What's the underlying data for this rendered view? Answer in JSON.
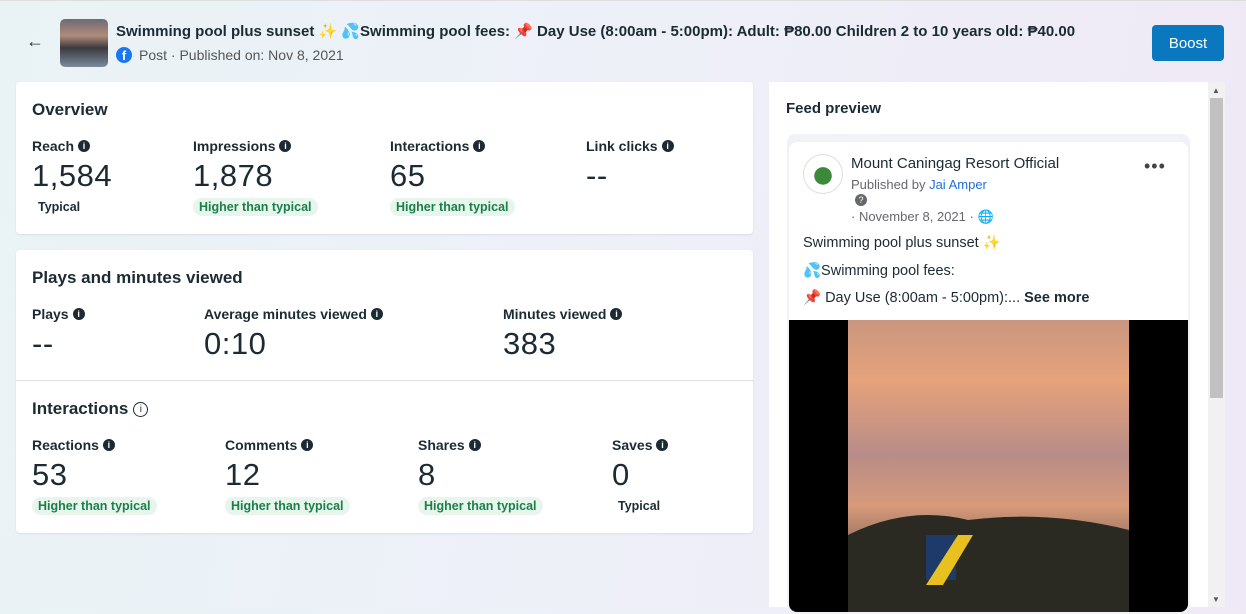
{
  "header": {
    "title": "Swimming pool plus sunset ✨ 💦Swimming pool fees: 📌 Day Use (8:00am - 5:00pm): Adult: ₱80.00 Children 2 to 10 years old: ₱40.00",
    "subtitle": "Post · Published on: Nov 8, 2021",
    "boost_label": "Boost"
  },
  "overview": {
    "title": "Overview",
    "metrics": [
      {
        "label": "Reach",
        "value": "1,584",
        "badge": "Typical"
      },
      {
        "label": "Impressions",
        "value": "1,878",
        "badge": "Higher than typical"
      },
      {
        "label": "Interactions",
        "value": "65",
        "badge": "Higher than typical"
      },
      {
        "label": "Link clicks",
        "value": "--",
        "badge": ""
      }
    ]
  },
  "plays": {
    "title": "Plays and minutes viewed",
    "metrics": [
      {
        "label": "Plays",
        "value": "--"
      },
      {
        "label": "Average minutes viewed",
        "value": "0:10"
      },
      {
        "label": "Minutes viewed",
        "value": "383"
      }
    ]
  },
  "interactions": {
    "title": "Interactions",
    "metrics": [
      {
        "label": "Reactions",
        "value": "53",
        "badge": "Higher than typical"
      },
      {
        "label": "Comments",
        "value": "12",
        "badge": "Higher than typical"
      },
      {
        "label": "Shares",
        "value": "8",
        "badge": "Higher than typical"
      },
      {
        "label": "Saves",
        "value": "0",
        "badge": "Typical"
      }
    ]
  },
  "feed": {
    "title": "Feed preview",
    "page_name": "Mount Caningag Resort Official",
    "published_by": "Published by",
    "author": "Jai Amper",
    "date": "· November 8, 2021 ·",
    "line1": "Swimming pool plus sunset ✨",
    "line2": "💦Swimming pool fees:",
    "line3": "📌 Day Use (8:00am - 5:00pm):...",
    "see_more": "See more"
  },
  "colors": {
    "accent": "#0a78be",
    "positive": "#1a7f4b"
  }
}
